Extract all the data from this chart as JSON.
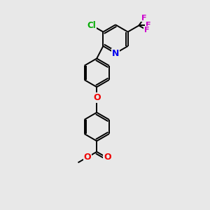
{
  "bg_color": "#e8e8e8",
  "bond_color": "#000000",
  "bond_width": 1.4,
  "figsize": [
    3.0,
    3.0
  ],
  "dpi": 100,
  "atoms": {
    "N": {
      "color": "#0000ee"
    },
    "O": {
      "color": "#ee0000"
    },
    "Cl": {
      "color": "#00aa00"
    },
    "F": {
      "color": "#cc00cc"
    }
  }
}
